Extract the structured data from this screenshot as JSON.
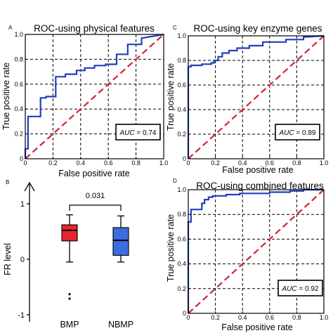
{
  "colors": {
    "roc": "#1f3fbf",
    "diagonal": "#d62033",
    "bmp": "#e8252f",
    "nbmp": "#3a6de0"
  },
  "chart_data": [
    {
      "panel_label": "A",
      "type": "line",
      "title": "ROC-using physical features",
      "xlabel": "False  positive rate",
      "ylabel": "True positive rate",
      "xlim": [
        0,
        1
      ],
      "ylim": [
        0,
        1
      ],
      "xticks": [
        "0",
        "0.2",
        "0.4",
        "0.6",
        "0.8",
        "1.0"
      ],
      "yticks": [
        "0",
        "0.2",
        "0.4",
        "0.6",
        "0.8",
        "1.0"
      ],
      "grid": true,
      "auc_label": "AUC",
      "auc_value": "= 0.74",
      "series": [
        {
          "x": [
            0,
            0,
            0.02,
            0.02,
            0.11,
            0.11,
            0.15,
            0.15,
            0.22,
            0.22,
            0.29,
            0.29,
            0.37,
            0.37,
            0.43,
            0.43,
            0.5,
            0.5,
            0.58,
            0.58,
            0.66,
            0.66,
            0.74,
            0.74,
            0.84,
            0.84,
            1.0
          ],
          "y": [
            0,
            0.08,
            0.08,
            0.34,
            0.34,
            0.49,
            0.49,
            0.5,
            0.5,
            0.66,
            0.66,
            0.68,
            0.68,
            0.71,
            0.71,
            0.73,
            0.73,
            0.75,
            0.75,
            0.76,
            0.76,
            0.84,
            0.84,
            0.92,
            0.92,
            0.97,
            1.0
          ]
        }
      ]
    },
    {
      "panel_label": "C",
      "type": "line",
      "title": "ROC-using key enzyme genes",
      "xlabel": "False  positive rate",
      "ylabel": "True positive rate",
      "xlim": [
        0,
        1
      ],
      "ylim": [
        0,
        1
      ],
      "xticks": [
        "0",
        "0.2",
        "0.4",
        "0.6",
        "0.8",
        "1.0"
      ],
      "yticks": [
        "0",
        "0.2",
        "0.4",
        "0.6",
        "0.8",
        "1.0"
      ],
      "grid": true,
      "auc_label": "AUC",
      "auc_value": "= 0.89",
      "series": [
        {
          "x": [
            0,
            0,
            0.02,
            0.02,
            0.1,
            0.1,
            0.17,
            0.17,
            0.19,
            0.19,
            0.22,
            0.22,
            0.25,
            0.25,
            0.3,
            0.3,
            0.36,
            0.36,
            0.45,
            0.45,
            0.55,
            0.55,
            0.72,
            0.72,
            0.85,
            0.85,
            1.0
          ],
          "y": [
            0,
            0.75,
            0.75,
            0.76,
            0.76,
            0.77,
            0.77,
            0.78,
            0.78,
            0.8,
            0.8,
            0.83,
            0.83,
            0.86,
            0.86,
            0.88,
            0.88,
            0.9,
            0.9,
            0.92,
            0.92,
            0.95,
            0.95,
            0.97,
            0.97,
            0.99,
            1.0
          ]
        }
      ]
    },
    {
      "panel_label": "B",
      "type": "box",
      "ylabel": "FR level",
      "ylim": [
        -1,
        1
      ],
      "yticks": [
        "-1",
        "0",
        "1"
      ],
      "categories": [
        "BMP",
        "NBMP"
      ],
      "significance": "0.031",
      "boxes": [
        {
          "name": "BMP",
          "whisker_low": -0.05,
          "q1": 0.33,
          "median": 0.52,
          "q3": 0.62,
          "whisker_high": 0.8,
          "outliers": [
            -0.63,
            -0.71
          ]
        },
        {
          "name": "NBMP",
          "whisker_low": -0.05,
          "q1": 0.07,
          "median": 0.34,
          "q3": 0.57,
          "whisker_high": 0.78,
          "outliers": []
        }
      ]
    },
    {
      "panel_label": "D",
      "type": "line",
      "title": "ROC-using combined features",
      "xlabel": "False positive rate",
      "ylabel": "True positive rate",
      "xlim": [
        0,
        1
      ],
      "ylim": [
        0,
        1
      ],
      "xticks": [
        "0",
        "0.2",
        "0.4",
        "0.6",
        "0.8",
        "1.0"
      ],
      "yticks": [
        "0",
        "0.2",
        "0.4",
        "0.6",
        "0.8",
        "1.0"
      ],
      "grid": true,
      "auc_label": "AUC",
      "auc_value": "= 0.92",
      "series": [
        {
          "x": [
            0,
            0,
            0.02,
            0.02,
            0.1,
            0.1,
            0.12,
            0.12,
            0.15,
            0.15,
            0.18,
            0.18,
            0.28,
            0.28,
            0.38,
            0.38,
            0.48,
            0.48,
            0.6,
            0.6,
            0.75,
            0.75,
            0.85,
            0.85,
            1.0
          ],
          "y": [
            0,
            0.74,
            0.74,
            0.84,
            0.84,
            0.89,
            0.89,
            0.92,
            0.92,
            0.94,
            0.94,
            0.95,
            0.95,
            0.96,
            0.96,
            0.97,
            0.97,
            0.97,
            0.97,
            0.98,
            0.98,
            0.99,
            0.99,
            1.0,
            1.0
          ]
        }
      ]
    }
  ]
}
